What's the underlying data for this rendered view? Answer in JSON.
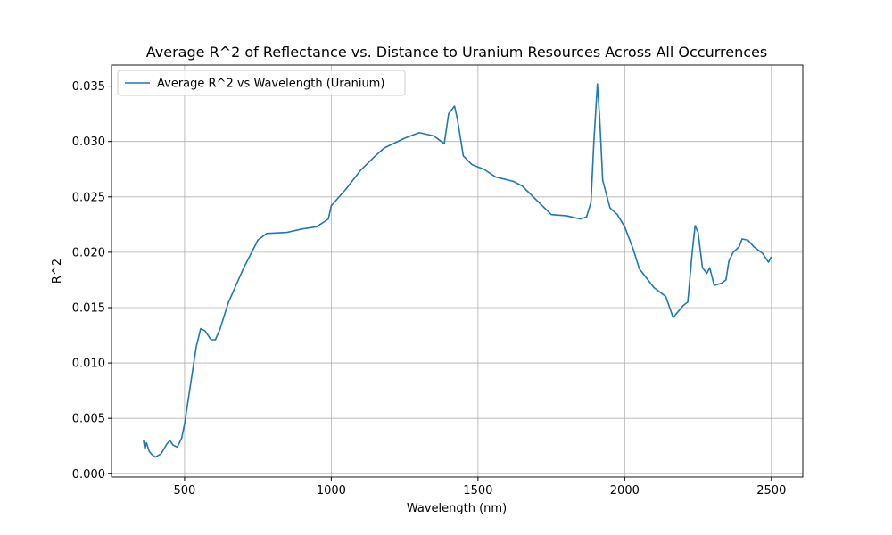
{
  "chart_data": {
    "type": "line",
    "title": "Average R^2 of Reflectance vs. Distance to Uranium Resources Across All Occurrences",
    "xlabel": "Wavelength (nm)",
    "ylabel": "R^2",
    "x": [
      360,
      365,
      370,
      380,
      390,
      400,
      420,
      440,
      450,
      460,
      475,
      490,
      500,
      520,
      540,
      555,
      570,
      590,
      605,
      620,
      650,
      700,
      750,
      780,
      850,
      900,
      950,
      990,
      1000,
      1050,
      1100,
      1150,
      1180,
      1250,
      1300,
      1350,
      1385,
      1400,
      1420,
      1430,
      1450,
      1480,
      1520,
      1560,
      1620,
      1650,
      1700,
      1750,
      1800,
      1850,
      1870,
      1885,
      1895,
      1907,
      1915,
      1925,
      1950,
      1975,
      2000,
      2030,
      2050,
      2100,
      2140,
      2165,
      2200,
      2215,
      2230,
      2240,
      2250,
      2265,
      2280,
      2290,
      2305,
      2330,
      2345,
      2355,
      2370,
      2390,
      2400,
      2420,
      2440,
      2470,
      2490,
      2500
    ],
    "series": [
      {
        "name": "Average R^2 vs Wavelength (Uranium)",
        "color": "#1f77b4",
        "values": [
          0.003,
          0.0022,
          0.0028,
          0.002,
          0.0017,
          0.0015,
          0.0018,
          0.0027,
          0.003,
          0.0026,
          0.0024,
          0.0032,
          0.0045,
          0.008,
          0.0115,
          0.0131,
          0.0129,
          0.0121,
          0.0121,
          0.013,
          0.0155,
          0.0185,
          0.0211,
          0.0217,
          0.0218,
          0.0221,
          0.0223,
          0.023,
          0.0242,
          0.0257,
          0.0274,
          0.0287,
          0.0294,
          0.0303,
          0.0308,
          0.0305,
          0.0298,
          0.0325,
          0.0332,
          0.032,
          0.0287,
          0.0279,
          0.0275,
          0.0268,
          0.0264,
          0.026,
          0.0247,
          0.0234,
          0.0233,
          0.023,
          0.0232,
          0.0245,
          0.03,
          0.0352,
          0.032,
          0.0265,
          0.024,
          0.0234,
          0.0223,
          0.0202,
          0.0185,
          0.0168,
          0.016,
          0.0141,
          0.0152,
          0.0155,
          0.02,
          0.0224,
          0.0218,
          0.0186,
          0.0181,
          0.0186,
          0.017,
          0.0172,
          0.0175,
          0.0192,
          0.02,
          0.0205,
          0.0212,
          0.0211,
          0.0205,
          0.0199,
          0.0191,
          0.0196
        ]
      }
    ],
    "xlim": [
      251,
      2607
    ],
    "ylim": [
      -0.0003,
      0.0369
    ],
    "xticks": [
      500,
      1000,
      1500,
      2000,
      2500
    ],
    "yticks": [
      {
        "value": 0,
        "label": "0.000"
      },
      0.005,
      {
        "value": 0.01,
        "label": "0.010"
      },
      0.015,
      {
        "value": 0.02,
        "label": "0.020"
      },
      0.025,
      {
        "value": 0.03,
        "label": "0.030"
      },
      0.035
    ],
    "grid": true,
    "legend": "upper left"
  }
}
